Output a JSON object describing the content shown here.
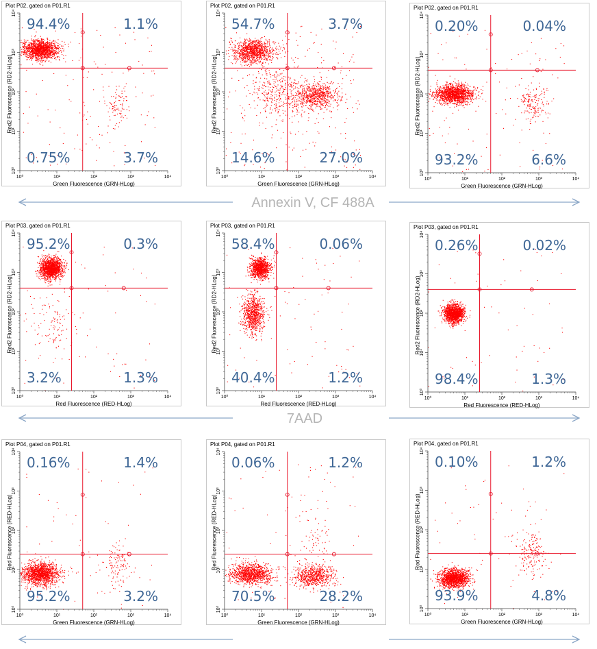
{
  "chart_data": [
    {
      "type": "scatter",
      "title": "Plot P02, gated on P01.R1",
      "xlabel": "Green Fluorescence (GRN-HLog)",
      "ylabel": "Red2 Fluorescence (RD2-HLog)",
      "xscale": "log",
      "yscale": "log",
      "xlim": [
        1,
        10000
      ],
      "ylim": [
        1,
        10000
      ],
      "quadrant_gate": {
        "x": 50,
        "y": 400
      },
      "quadrants": {
        "upper_left": "94.4%",
        "upper_right": "1.1%",
        "lower_left": "0.75%",
        "lower_right": "3.7%"
      },
      "clusters": [
        {
          "center": [
            3.5,
            1200
          ],
          "spread": [
            0.24,
            0.12
          ],
          "count": 1500
        },
        {
          "center": [
            450,
            45
          ],
          "spread": [
            0.18,
            0.25
          ],
          "count": 90
        }
      ],
      "noise_count": 140
    },
    {
      "type": "scatter",
      "title": "Plot P02, gated on P01.R1",
      "xlabel": "Green Fluorescence (GRN-HLog)",
      "ylabel": "Red2 Fluorescence (RD2-HLog)",
      "xscale": "log",
      "yscale": "log",
      "xlim": [
        1,
        10000
      ],
      "ylim": [
        1,
        10000
      ],
      "quadrant_gate": {
        "x": 50,
        "y": 400
      },
      "quadrants": {
        "upper_left": "54.7%",
        "upper_right": "3.7%",
        "lower_left": "14.6%",
        "lower_right": "27.0%"
      },
      "clusters": [
        {
          "center": [
            6,
            1100
          ],
          "spread": [
            0.28,
            0.14
          ],
          "count": 1100
        },
        {
          "center": [
            280,
            80
          ],
          "spread": [
            0.3,
            0.17
          ],
          "count": 750
        },
        {
          "center": [
            25,
            90
          ],
          "spread": [
            0.35,
            0.35
          ],
          "count": 350
        }
      ],
      "noise_count": 250
    },
    {
      "type": "scatter",
      "title": "Plot P02, gated on P01.R1",
      "xlabel": "Green Fluorescence (GRN-HLog)",
      "ylabel": "Red2 Fluorescence (RD2-HLog)",
      "xscale": "log",
      "yscale": "log",
      "xlim": [
        1,
        10000
      ],
      "ylim": [
        1,
        10000
      ],
      "quadrant_gate": {
        "x": 50,
        "y": 400
      },
      "quadrants": {
        "upper_left": "0.20%",
        "upper_right": "0.04%",
        "lower_left": "93.2%",
        "lower_right": "6.6%"
      },
      "clusters": [
        {
          "center": [
            5,
            100
          ],
          "spread": [
            0.26,
            0.12
          ],
          "count": 1500
        },
        {
          "center": [
            700,
            60
          ],
          "spread": [
            0.2,
            0.22
          ],
          "count": 160
        }
      ],
      "noise_count": 120
    },
    {
      "type": "scatter",
      "title": "Plot P03, gated on P01.R1",
      "xlabel": "Red Fluorescence (RED-HLog)",
      "ylabel": "Red2 Fluorescence (RD2-HLog)",
      "xscale": "log",
      "yscale": "log",
      "xlim": [
        1,
        10000
      ],
      "ylim": [
        1,
        10000
      ],
      "quadrant_gate": {
        "x": 25,
        "y": 400
      },
      "quadrants": {
        "upper_left": "95.2%",
        "upper_right": "0.3%",
        "lower_left": "3.2%",
        "lower_right": "1.3%"
      },
      "clusters": [
        {
          "center": [
            7,
            1300
          ],
          "spread": [
            0.15,
            0.13
          ],
          "count": 1500
        },
        {
          "center": [
            8,
            50
          ],
          "spread": [
            0.3,
            0.4
          ],
          "count": 110
        }
      ],
      "noise_count": 60
    },
    {
      "type": "scatter",
      "title": "Plot P03, gated on P01.R1",
      "xlabel": "Red Fluorescence (RED-HLog)",
      "ylabel": "Red2 Fluorescence (RD2-HLog)",
      "xscale": "log",
      "yscale": "log",
      "xlim": [
        1,
        10000
      ],
      "ylim": [
        1,
        10000
      ],
      "quadrant_gate": {
        "x": 25,
        "y": 400
      },
      "quadrants": {
        "upper_left": "58.4%",
        "upper_right": "0.06%",
        "lower_left": "40.4%",
        "lower_right": "1.2%"
      },
      "clusters": [
        {
          "center": [
            9,
            1300
          ],
          "spread": [
            0.13,
            0.13
          ],
          "count": 1100
        },
        {
          "center": [
            6,
            90
          ],
          "spread": [
            0.14,
            0.25
          ],
          "count": 850
        }
      ],
      "noise_count": 80
    },
    {
      "type": "scatter",
      "title": "Plot P03, gated on P01.R1",
      "xlabel": "Red Fluorescence (RED-HLog)",
      "ylabel": "Red2 Fluorescence (RD2-HLog)",
      "xscale": "log",
      "yscale": "log",
      "xlim": [
        1,
        10000
      ],
      "ylim": [
        1,
        10000
      ],
      "quadrant_gate": {
        "x": 25,
        "y": 400
      },
      "quadrants": {
        "upper_left": "0.26%",
        "upper_right": "0.02%",
        "lower_left": "98.4%",
        "lower_right": "1.3%"
      },
      "clusters": [
        {
          "center": [
            5,
            100
          ],
          "spread": [
            0.13,
            0.12
          ],
          "count": 1500
        }
      ],
      "noise_count": 60
    },
    {
      "type": "scatter",
      "title": "Plot P04, gated on P01.R1",
      "xlabel": "Green Fluorescence (GRN-HLog)",
      "ylabel": "Red Fluorescence (RED-HLog)",
      "xscale": "log",
      "yscale": "log",
      "xlim": [
        1,
        10000
      ],
      "ylim": [
        1,
        10000
      ],
      "quadrant_gate": {
        "x": 50,
        "y": 25
      },
      "quadrants": {
        "upper_left": "0.16%",
        "upper_right": "1.4%",
        "lower_left": "95.2%",
        "lower_right": "3.2%"
      },
      "clusters": [
        {
          "center": [
            3.5,
            8
          ],
          "spread": [
            0.24,
            0.14
          ],
          "count": 1500
        },
        {
          "center": [
            400,
            15
          ],
          "spread": [
            0.2,
            0.3
          ],
          "count": 120
        }
      ],
      "noise_count": 60
    },
    {
      "type": "scatter",
      "title": "Plot P04, gated on P01.R1",
      "xlabel": "Green Fluorescence (GRN-HLog)",
      "ylabel": "Red Fluorescence (RED-HLog)",
      "xscale": "log",
      "yscale": "log",
      "xlim": [
        1,
        10000
      ],
      "ylim": [
        1,
        10000
      ],
      "quadrant_gate": {
        "x": 50,
        "y": 25
      },
      "quadrants": {
        "upper_left": "0.06%",
        "upper_right": "1.2%",
        "lower_left": "70.5%",
        "lower_right": "28.2%"
      },
      "clusters": [
        {
          "center": [
            5,
            8
          ],
          "spread": [
            0.28,
            0.13
          ],
          "count": 1100
        },
        {
          "center": [
            250,
            7
          ],
          "spread": [
            0.28,
            0.14
          ],
          "count": 700
        },
        {
          "center": [
            300,
            50
          ],
          "spread": [
            0.22,
            0.3
          ],
          "count": 60
        }
      ],
      "noise_count": 80
    },
    {
      "type": "scatter",
      "title": "Plot P04, gated on P01.R1",
      "xlabel": "Green Fluorescence (GRN-HLog)",
      "ylabel": "Red Fluorescence (RED-HLog)",
      "xscale": "log",
      "yscale": "log",
      "xlim": [
        1,
        10000
      ],
      "ylim": [
        1,
        10000
      ],
      "quadrant_gate": {
        "x": 50,
        "y": 25
      },
      "quadrants": {
        "upper_left": "0.10%",
        "upper_right": "1.2%",
        "lower_left": "93.9%",
        "lower_right": "4.8%"
      },
      "clusters": [
        {
          "center": [
            5,
            6
          ],
          "spread": [
            0.2,
            0.12
          ],
          "count": 1500
        },
        {
          "center": [
            600,
            25
          ],
          "spread": [
            0.2,
            0.3
          ],
          "count": 170
        }
      ],
      "noise_count": 60
    }
  ],
  "axis_ticks": {
    "x": [
      "10⁰",
      "10¹",
      "10²",
      "10³",
      "10⁴"
    ],
    "y": [
      "10⁰",
      "10¹",
      "10²",
      "10³",
      "10⁴"
    ]
  },
  "row_labels": [
    "Annexin V, CF 488A",
    "7AAD",
    ""
  ],
  "colors": {
    "points": "#ff0000",
    "gate": "#e8152a",
    "percent_text": "#3f6796",
    "arrow": "#8aa6c6",
    "row_label": "#b5b5b5"
  }
}
